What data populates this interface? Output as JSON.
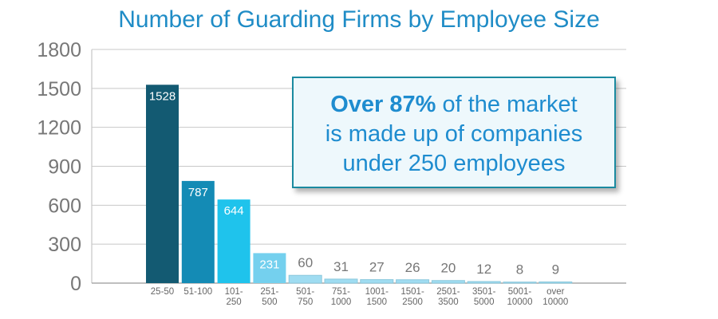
{
  "chart_data": {
    "type": "bar",
    "title": "Number of Guarding Firms by Employee Size",
    "categories": [
      [
        "25-50"
      ],
      [
        "51-100"
      ],
      [
        "101-",
        "250"
      ],
      [
        "251-",
        "500"
      ],
      [
        "501-",
        "750"
      ],
      [
        "751-",
        "1000"
      ],
      [
        "1001-",
        "1500"
      ],
      [
        "1501-",
        "2500"
      ],
      [
        "2501-",
        "3500"
      ],
      [
        "3501-",
        "5000"
      ],
      [
        "5001-",
        "10000"
      ],
      [
        "over",
        "10000"
      ]
    ],
    "values": [
      1528,
      787,
      644,
      231,
      60,
      31,
      27,
      26,
      20,
      12,
      8,
      9
    ],
    "data_labels": [
      "1528",
      "787",
      "644",
      "231",
      "60",
      "31",
      "27",
      "26",
      "20",
      "12",
      "8",
      "9"
    ],
    "ylim": [
      0,
      1800
    ],
    "yticks": [
      0,
      300,
      600,
      900,
      1200,
      1500,
      1800
    ],
    "grid": true,
    "colors": [
      "#135a72",
      "#148bb5",
      "#1fc3ec",
      "#74d0ee",
      "#9fdcf1",
      "#9fdcf1",
      "#9fdcf1",
      "#9fdcf1",
      "#9fdcf1",
      "#9fdcf1",
      "#9fdcf1",
      "#9fdcf1"
    ],
    "annotation": {
      "bold": "Over 87%",
      "line1_rest": " of the market",
      "line2": "is made up of companies",
      "line3": "under 250 employees"
    }
  }
}
